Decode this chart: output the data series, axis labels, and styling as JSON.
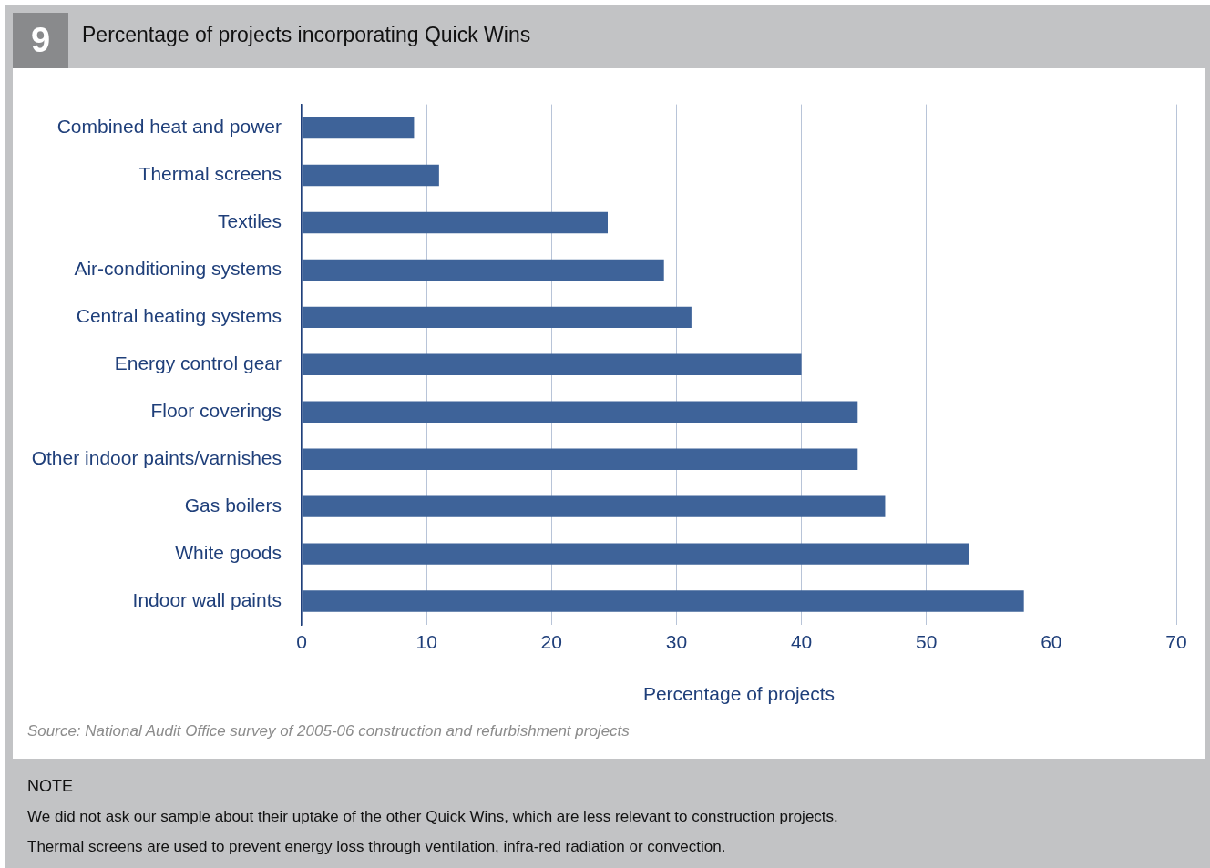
{
  "chart_data": {
    "type": "bar",
    "orientation": "horizontal",
    "title": "Percentage of projects incorporating Quick Wins",
    "xlabel": "Percentage of projects",
    "categories": [
      "Combined heat and power",
      "Thermal screens",
      "Textiles",
      "Air-conditioning systems",
      "Central heating systems",
      "Energy control gear",
      "Floor coverings",
      "Other indoor paints/varnishes",
      "Gas boilers",
      "White goods",
      "Indoor wall paints"
    ],
    "values": [
      9,
      11,
      24.5,
      29,
      31.2,
      40,
      44.5,
      44.5,
      46.7,
      53.4,
      57.8
    ],
    "color": "#3e6399",
    "xlim": [
      0,
      70
    ],
    "xticks": [
      0,
      10,
      20,
      30,
      40,
      50,
      60,
      70
    ],
    "grid": "x",
    "legend": false,
    "annotations": [
      "9",
      "Source: National Audit Office survey of 2005-06 construction and refurbishment projects",
      "NOTE",
      "We did not ask our sample about their uptake of the other Quick Wins, which are less relevant to construction projects.",
      "Thermal screens are used to prevent energy loss through ventilation, infra-red radiation or convection."
    ]
  }
}
